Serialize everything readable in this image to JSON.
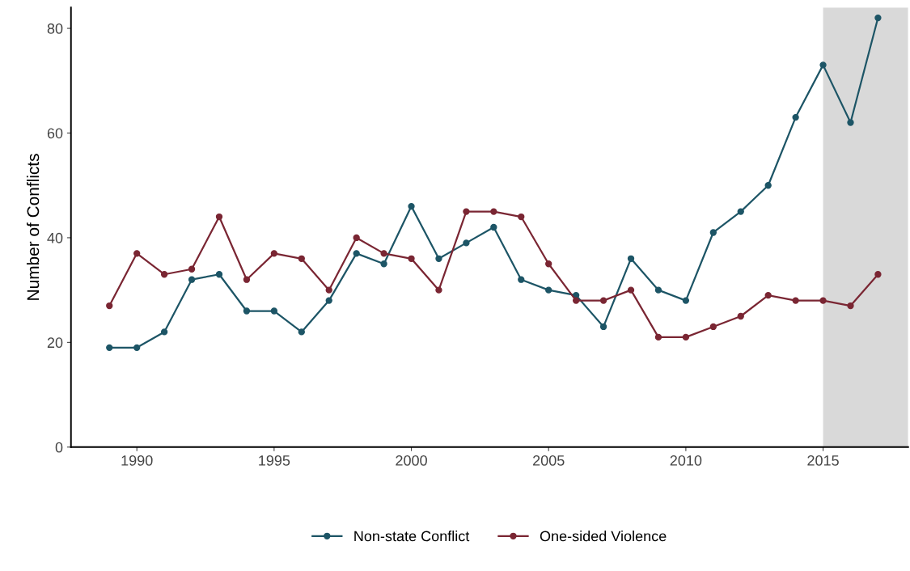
{
  "chart_data": {
    "type": "line",
    "ylabel": "Number of Conflicts",
    "x": [
      1989,
      1990,
      1991,
      1992,
      1993,
      1994,
      1995,
      1996,
      1997,
      1998,
      1999,
      2000,
      2001,
      2002,
      2003,
      2004,
      2005,
      2006,
      2007,
      2008,
      2009,
      2010,
      2011,
      2012,
      2013,
      2014,
      2015,
      2016,
      2017
    ],
    "series": [
      {
        "name": "Non-state Conflict",
        "color": "#1d5566",
        "values": [
          19,
          19,
          22,
          32,
          33,
          26,
          26,
          22,
          28,
          37,
          35,
          46,
          36,
          39,
          42,
          32,
          30,
          29,
          23,
          36,
          30,
          28,
          41,
          45,
          50,
          63,
          73,
          62,
          82
        ]
      },
      {
        "name": "One-sided Violence",
        "color": "#7a2633",
        "values": [
          27,
          37,
          33,
          34,
          44,
          32,
          37,
          36,
          30,
          40,
          37,
          36,
          30,
          45,
          45,
          44,
          35,
          28,
          28,
          30,
          21,
          21,
          23,
          25,
          29,
          28,
          28,
          27,
          33
        ]
      }
    ],
    "xlim": [
      1987.6,
      2018.1
    ],
    "ylim": [
      0,
      84
    ],
    "xticks": [
      1990,
      1995,
      2000,
      2005,
      2010,
      2015
    ],
    "yticks": [
      0,
      20,
      40,
      60,
      80
    ],
    "bands": [
      {
        "axis": "x",
        "from": 2015,
        "to": 2018.1,
        "color": "#d9d9d9"
      }
    ],
    "grid": false,
    "legend": "bottom",
    "marker": "circle",
    "line_style": "solid"
  }
}
